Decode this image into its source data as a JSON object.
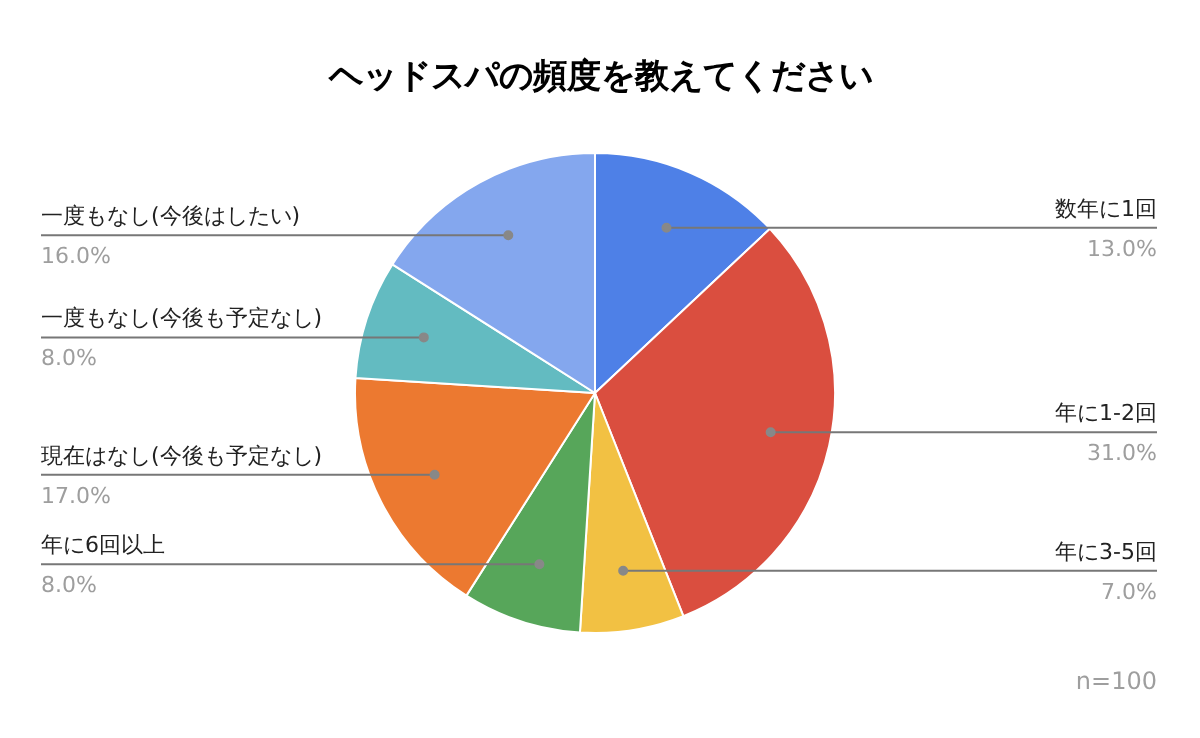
{
  "chart_data": {
    "type": "pie",
    "title": "ヘッドスパの頻度を教えてください",
    "categories": [
      "数年に1回",
      "年に1-2回",
      "年に3-5回",
      "年に6回以上",
      "現在はなし(今後も予定なし)",
      "一度もなし(今後も予定なし)",
      "一度もなし(今後はしたい)"
    ],
    "values": [
      13,
      31,
      7,
      8,
      17,
      8,
      16
    ],
    "colors": [
      "#4e80e7",
      "#da4e3f",
      "#f2c143",
      "#57a65a",
      "#ec7930",
      "#63bbc1",
      "#84a7ee"
    ],
    "value_labels": [
      "13.0%",
      "31.0%",
      "7.0%",
      "8.0%",
      "17.0%",
      "8.0%",
      "16.0%"
    ],
    "annotations": [
      "n=100"
    ]
  }
}
